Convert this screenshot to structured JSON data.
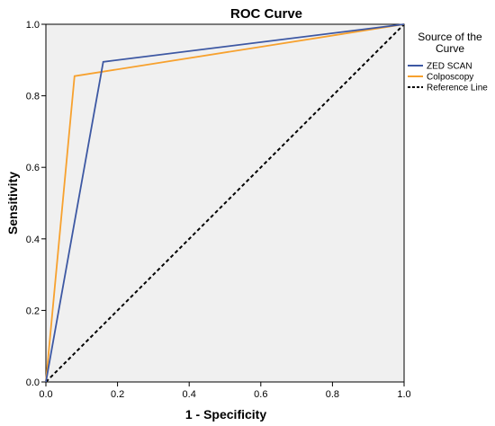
{
  "chart_data": {
    "type": "line",
    "title": "ROC Curve",
    "xlabel": "1 - Specificity",
    "ylabel": "Sensitivity",
    "xlim": [
      0,
      1
    ],
    "ylim": [
      0,
      1
    ],
    "xticks": [
      "0.0",
      "0.2",
      "0.4",
      "0.6",
      "0.8",
      "1.0"
    ],
    "yticks": [
      "0.0",
      "0.2",
      "0.4",
      "0.6",
      "0.8",
      "1.0"
    ],
    "grid": false,
    "legend": {
      "title_line1": "Source of the",
      "title_line2": "Curve",
      "placement": "right"
    },
    "series": [
      {
        "name": "ZED SCAN",
        "color": "#3d58a3",
        "dash": "solid",
        "x": [
          0,
          0.16,
          1
        ],
        "y": [
          0,
          0.895,
          1
        ]
      },
      {
        "name": "Colposcopy",
        "color": "#f7a12e",
        "dash": "solid",
        "x": [
          0,
          0.08,
          1
        ],
        "y": [
          0,
          0.855,
          1
        ]
      },
      {
        "name": "Reference Line",
        "color": "#000000",
        "dash": "dashed",
        "x": [
          0,
          1
        ],
        "y": [
          0,
          1
        ]
      }
    ]
  }
}
